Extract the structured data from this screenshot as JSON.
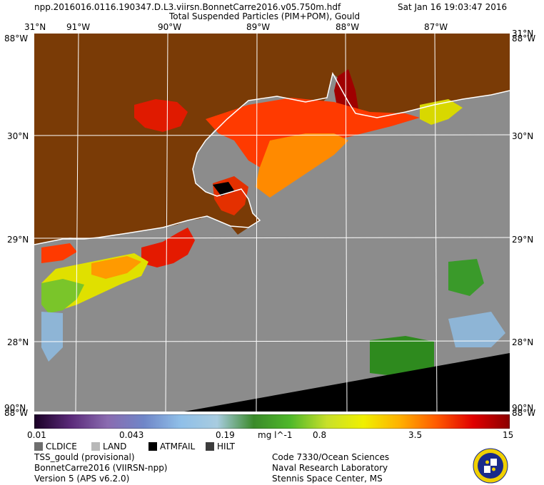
{
  "header": {
    "filename": "npp.2016016.0116.190347.D.L3.viirsn.BonnetCarre2016.v05.750m.hdf",
    "datetime": "Sat Jan 16 19:03:47 2016",
    "product": "Total Suspended Particles (PIM+POM), Gould"
  },
  "map": {
    "lon_labels": [
      "91°W",
      "90°W",
      "89°W",
      "88°W",
      "87°W"
    ],
    "lat_labels": [
      "30°N",
      "29°N",
      "28°N"
    ],
    "corner_lat_top": "31°N",
    "corner_lon_top": "88°W",
    "corner_lat_bottom": "90°N",
    "corner_lon_bottom": "88°W",
    "colors": {
      "land": "#7a3b06",
      "background": "#8c8c8c",
      "nodata": "#000000",
      "grid": "#ffffff"
    }
  },
  "colorbar": {
    "ticks": [
      "0.01",
      "0.043",
      "0.19",
      "0.8",
      "3.5",
      "15"
    ],
    "units": "mg l^-1",
    "gradient": [
      "#1a0026",
      "#5b2a7a",
      "#8a6bb0",
      "#6f86c8",
      "#8fbfe8",
      "#a8cce0",
      "#3a8a2a",
      "#4fb82a",
      "#c8e02a",
      "#f0f000",
      "#ffb000",
      "#ff5a00",
      "#e00000",
      "#8b0000"
    ]
  },
  "legend": {
    "items": [
      {
        "label": "CLDICE",
        "color": "#6e6e6e"
      },
      {
        "label": "LAND",
        "color": "#b8b8b8"
      },
      {
        "label": "ATMFAIL",
        "color": "#000000"
      },
      {
        "label": "HILT",
        "color": "#3c3c3c"
      }
    ]
  },
  "footer": {
    "left": [
      "TSS_gould (provisional)",
      "BonnetCarre2016 (VIIRSN-npp)",
      "Version 5 (APS v6.2.0)"
    ],
    "right": [
      "Code 7330/Ocean Sciences",
      "Naval Research Laboratory",
      "Stennis Space Center, MS"
    ]
  }
}
